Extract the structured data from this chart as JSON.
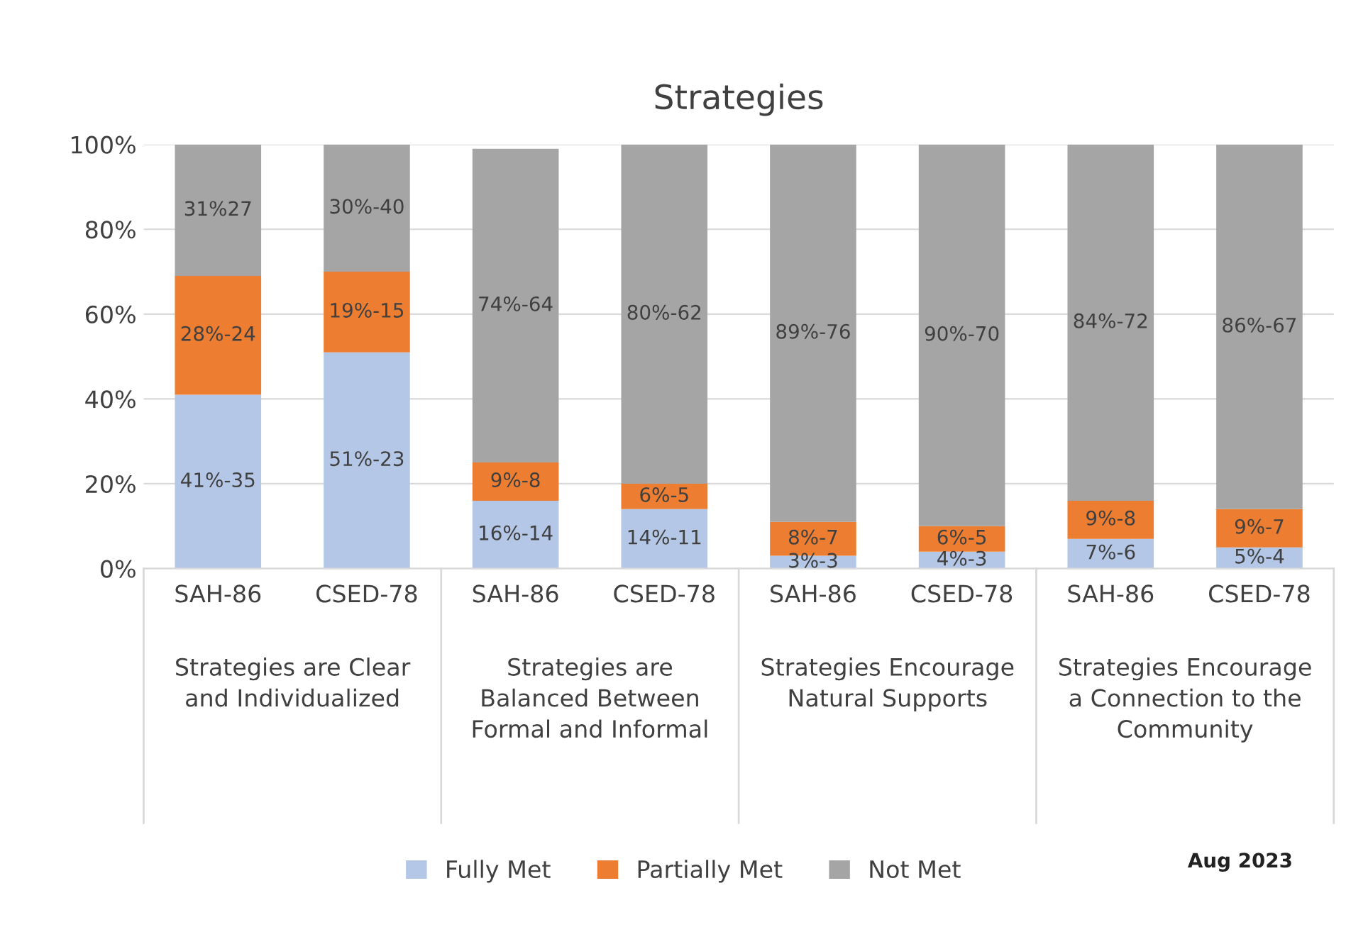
{
  "chart_data": {
    "type": "bar",
    "title": "Strategies",
    "stacked": true,
    "categories": [
      "SAH-86",
      "CSED-78",
      "SAH-86",
      "CSED-78",
      "SAH-86",
      "CSED-78",
      "SAH-86",
      "CSED-78"
    ],
    "series": [
      {
        "name": "Fully Met",
        "color": "#b4c7e7",
        "values": [
          41,
          51,
          16,
          14,
          3,
          4,
          7,
          5
        ],
        "value_labels": [
          "41%-35",
          "51%-23",
          "16%-14",
          "14%-11",
          "3%-3",
          "4%-3",
          "7%-6",
          "5%-4"
        ]
      },
      {
        "name": "Partially Met",
        "color": "#ed7d31",
        "values": [
          28,
          19,
          9,
          6,
          8,
          6,
          9,
          9
        ],
        "value_labels": [
          "28%-24",
          "19%-15",
          "9%-8",
          "6%-5",
          "8%-7",
          "6%-5",
          "9%-8",
          "9%-7"
        ]
      },
      {
        "name": "Not Met",
        "color": "#a5a5a5",
        "values": [
          31,
          30,
          74,
          80,
          89,
          90,
          84,
          86
        ],
        "value_labels": [
          "31%27",
          "30%-40",
          "74%-64",
          "80%-62",
          "89%-76",
          "90%-70",
          "84%-72",
          "86%-67"
        ]
      }
    ],
    "ylim": [
      0,
      100
    ],
    "yticks": [
      {
        "value": 0,
        "label": "0%"
      },
      {
        "value": 20,
        "label": "20%"
      },
      {
        "value": 40,
        "label": "40%"
      },
      {
        "value": 60,
        "label": "60%"
      },
      {
        "value": 80,
        "label": "80%"
      },
      {
        "value": 100,
        "label": "100%"
      }
    ],
    "grid": "y",
    "legend": "bottom",
    "annotations": [
      "Strategies are Clear and Individualized",
      "Strategies are Balanced Between Formal and Informal",
      "Strategies Encourage Natural Supports",
      "Strategies Encourage a Connection to the Community",
      "Aug 2023"
    ]
  }
}
